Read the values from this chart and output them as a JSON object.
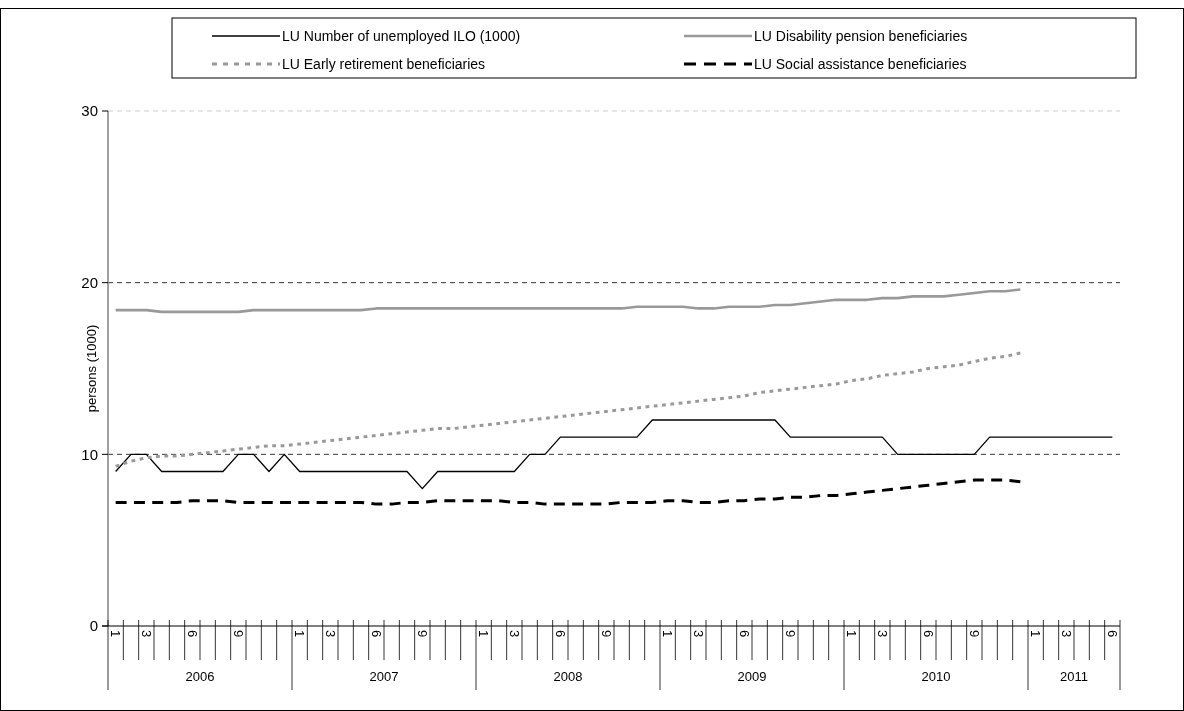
{
  "chart_data": {
    "type": "line",
    "ylabel": "persons (1000)",
    "categories": [
      "1",
      null,
      "3",
      null,
      null,
      "6",
      null,
      null,
      "9",
      null,
      null,
      null,
      "1",
      null,
      "3",
      null,
      null,
      "6",
      null,
      null,
      "9",
      null,
      null,
      null,
      "1",
      null,
      "3",
      null,
      null,
      "6",
      null,
      null,
      "9",
      null,
      null,
      null,
      "1",
      null,
      "3",
      null,
      null,
      "6",
      null,
      null,
      "9",
      null,
      null,
      null,
      "1",
      null,
      "3",
      null,
      null,
      "6",
      null,
      null,
      "9",
      null,
      null,
      null,
      "1",
      null,
      "3",
      null,
      null,
      "6"
    ],
    "annotations": [
      "2006",
      "2007",
      "2008",
      "2009",
      "2010",
      "2011"
    ],
    "ylim": [
      0,
      30
    ],
    "yticks": [
      0,
      10,
      20,
      30
    ],
    "grid": "y",
    "legend": "top",
    "series": [
      {
        "name": "LU Number of unemployed ILO (1000)",
        "color": "#000000",
        "line_style": "solid",
        "values": [
          9,
          10,
          10,
          9,
          9,
          9,
          9,
          9,
          10,
          10,
          9,
          10,
          9,
          9,
          9,
          9,
          9,
          9,
          9,
          9,
          8,
          9,
          9,
          9,
          9,
          9,
          9,
          10,
          10,
          11,
          11,
          11,
          11,
          11,
          11,
          12,
          12,
          12,
          12,
          12,
          12,
          12,
          12,
          12,
          11,
          11,
          11,
          11,
          11,
          11,
          11,
          10,
          10,
          10,
          10,
          10,
          10,
          11,
          11,
          11,
          11,
          11,
          11,
          11,
          11,
          11
        ]
      },
      {
        "name": "LU Disability pension beneficiaries",
        "color": "#999999",
        "line_style": "solid",
        "values": [
          18.4,
          18.4,
          18.4,
          18.3,
          18.3,
          18.3,
          18.3,
          18.3,
          18.3,
          18.4,
          18.4,
          18.4,
          18.4,
          18.4,
          18.4,
          18.4,
          18.4,
          18.5,
          18.5,
          18.5,
          18.5,
          18.5,
          18.5,
          18.5,
          18.5,
          18.5,
          18.5,
          18.5,
          18.5,
          18.5,
          18.5,
          18.5,
          18.5,
          18.5,
          18.6,
          18.6,
          18.6,
          18.6,
          18.5,
          18.5,
          18.6,
          18.6,
          18.6,
          18.7,
          18.7,
          18.8,
          18.9,
          19.0,
          19.0,
          19.0,
          19.1,
          19.1,
          19.2,
          19.2,
          19.2,
          19.3,
          19.4,
          19.5,
          19.5,
          19.6,
          null,
          null,
          null,
          null,
          null,
          null
        ]
      },
      {
        "name": "LU Early retirement beneficiaries",
        "color": "#999999",
        "line_style": "dotted",
        "values": [
          9.3,
          9.6,
          9.8,
          9.9,
          9.9,
          10.0,
          10.1,
          10.2,
          10.3,
          10.4,
          10.5,
          10.5,
          10.6,
          10.7,
          10.8,
          10.9,
          11.0,
          11.1,
          11.2,
          11.3,
          11.4,
          11.5,
          11.5,
          11.6,
          11.7,
          11.8,
          11.9,
          12.0,
          12.1,
          12.2,
          12.3,
          12.4,
          12.5,
          12.6,
          12.7,
          12.8,
          12.9,
          13.0,
          13.1,
          13.2,
          13.3,
          13.4,
          13.6,
          13.7,
          13.8,
          13.9,
          14.0,
          14.1,
          14.3,
          14.4,
          14.6,
          14.7,
          14.8,
          15.0,
          15.1,
          15.2,
          15.4,
          15.6,
          15.7,
          15.9,
          null,
          null,
          null,
          null,
          null,
          null
        ]
      },
      {
        "name": "LU Social assistance beneficiaries",
        "color": "#000000",
        "line_style": "dashed",
        "values": [
          7.2,
          7.2,
          7.2,
          7.2,
          7.2,
          7.3,
          7.3,
          7.3,
          7.2,
          7.2,
          7.2,
          7.2,
          7.2,
          7.2,
          7.2,
          7.2,
          7.2,
          7.1,
          7.1,
          7.2,
          7.2,
          7.3,
          7.3,
          7.3,
          7.3,
          7.3,
          7.2,
          7.2,
          7.1,
          7.1,
          7.1,
          7.1,
          7.1,
          7.2,
          7.2,
          7.2,
          7.3,
          7.3,
          7.2,
          7.2,
          7.3,
          7.3,
          7.4,
          7.4,
          7.5,
          7.5,
          7.6,
          7.6,
          7.7,
          7.8,
          7.9,
          8.0,
          8.1,
          8.2,
          8.3,
          8.4,
          8.5,
          8.5,
          8.5,
          8.4,
          null,
          null,
          null,
          null,
          null,
          null
        ]
      }
    ]
  }
}
